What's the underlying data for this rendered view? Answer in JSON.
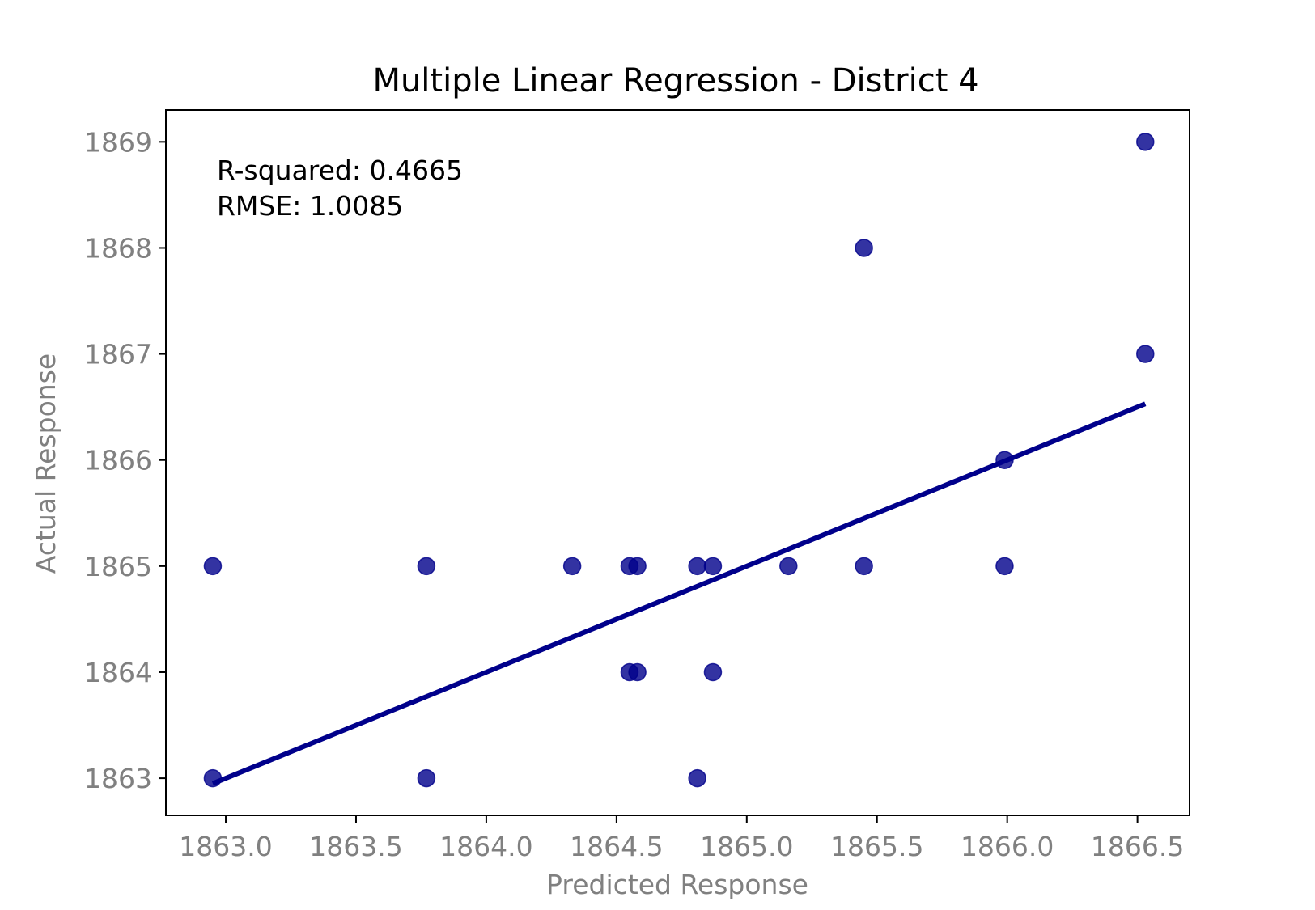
{
  "chart_data": {
    "type": "scatter",
    "title": "Multiple Linear Regression - District 4",
    "xlabel": "Predicted Response",
    "ylabel": "Actual Response",
    "xlim": [
      1862.77,
      1866.7
    ],
    "ylim": [
      1862.65,
      1869.3
    ],
    "xticks": [
      1863.0,
      1863.5,
      1864.0,
      1864.5,
      1865.0,
      1865.5,
      1866.0,
      1866.5
    ],
    "xtick_labels": [
      "1863.0",
      "1863.5",
      "1864.0",
      "1864.5",
      "1865.0",
      "1865.5",
      "1866.0",
      "1866.5"
    ],
    "yticks": [
      1863,
      1864,
      1865,
      1866,
      1867,
      1868,
      1869
    ],
    "ytick_labels": [
      "1863",
      "1864",
      "1865",
      "1866",
      "1867",
      "1868",
      "1869"
    ],
    "grid": false,
    "point_color": "#00008b",
    "line_color": "#00008b",
    "points": [
      {
        "x": 1862.95,
        "y": 1865
      },
      {
        "x": 1862.95,
        "y": 1863
      },
      {
        "x": 1863.77,
        "y": 1865
      },
      {
        "x": 1863.77,
        "y": 1863
      },
      {
        "x": 1864.33,
        "y": 1865
      },
      {
        "x": 1864.55,
        "y": 1865
      },
      {
        "x": 1864.58,
        "y": 1865
      },
      {
        "x": 1864.55,
        "y": 1864
      },
      {
        "x": 1864.58,
        "y": 1864
      },
      {
        "x": 1864.81,
        "y": 1865
      },
      {
        "x": 1864.81,
        "y": 1863
      },
      {
        "x": 1864.87,
        "y": 1865
      },
      {
        "x": 1864.87,
        "y": 1864
      },
      {
        "x": 1865.16,
        "y": 1865
      },
      {
        "x": 1865.45,
        "y": 1868
      },
      {
        "x": 1865.45,
        "y": 1865
      },
      {
        "x": 1865.99,
        "y": 1866
      },
      {
        "x": 1865.99,
        "y": 1865
      },
      {
        "x": 1866.53,
        "y": 1869
      },
      {
        "x": 1866.53,
        "y": 1867
      }
    ],
    "fit_line": {
      "x": [
        1862.95,
        1866.53
      ],
      "y": [
        1862.95,
        1866.53
      ]
    },
    "annotations": {
      "r_squared": "R-squared: 0.4665",
      "rmse": "RMSE: 1.0085"
    }
  }
}
